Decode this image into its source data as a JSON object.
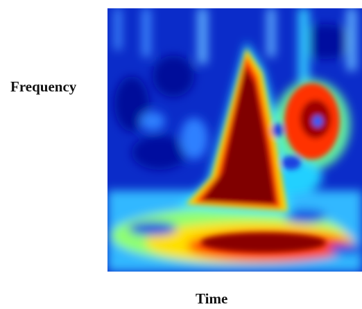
{
  "figure": {
    "ylabel": "Frequency",
    "xlabel": "Time"
  }
}
